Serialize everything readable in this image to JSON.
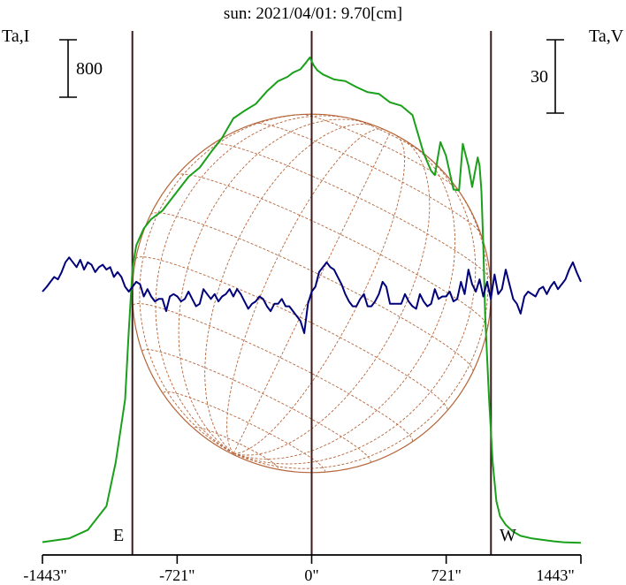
{
  "chart_data": {
    "type": "line",
    "title": "sun: 2021/04/01: 9.70[cm]",
    "title_color": "#2a2a7a",
    "ylabel_left": "Ta,I",
    "ylabel_right": "Ta,V",
    "scalebar_left": "800",
    "scalebar_right": "30",
    "marker_east": "E",
    "marker_west": "W",
    "xlim": [
      -1443,
      1443
    ],
    "xticks": [
      {
        "value": -1443,
        "label": "-1443\""
      },
      {
        "value": -721,
        "label": "-721\""
      },
      {
        "value": 0,
        "label": "0\""
      },
      {
        "value": 721,
        "label": "721\""
      },
      {
        "value": 1443,
        "label": "1443\""
      }
    ],
    "limb_lines": [
      -961,
      0,
      961
    ],
    "colors": {
      "intensity": "#1aa01a",
      "polarization": "#00007a",
      "solar_disk": "#b5653a",
      "limb_line": "#3a1a1a",
      "axes": "#000000"
    },
    "series": [
      {
        "key": "intensity",
        "color": "#1aa01a",
        "x": [
          -1443,
          -1300,
          -1200,
          -1100,
          -1050,
          -1000,
          -980,
          -960,
          -940,
          -900,
          -860,
          -800,
          -720,
          -660,
          -600,
          -540,
          -480,
          -420,
          -360,
          -300,
          -240,
          -180,
          -130,
          -100,
          -60,
          -30,
          -10,
          10,
          30,
          60,
          120,
          180,
          240,
          300,
          360,
          420,
          480,
          540,
          600,
          640,
          660,
          690,
          720,
          760,
          790,
          810,
          840,
          860,
          890,
          900,
          910,
          920,
          930,
          950,
          970,
          990,
          1010,
          1040,
          1080,
          1120,
          1180,
          1250,
          1300,
          1350,
          1400,
          1443
        ],
        "y": [
          16,
          60,
          160,
          440,
          960,
          1700,
          2520,
          3250,
          3520,
          3720,
          3830,
          3930,
          4160,
          4330,
          4440,
          4620,
          4790,
          5020,
          5110,
          5190,
          5340,
          5460,
          5510,
          5560,
          5600,
          5680,
          5740,
          5650,
          5590,
          5540,
          5480,
          5460,
          5390,
          5330,
          5310,
          5210,
          5170,
          5060,
          4610,
          4400,
          4350,
          4740,
          4580,
          4180,
          4170,
          4720,
          4460,
          4210,
          4560,
          4460,
          4160,
          3520,
          2700,
          1730,
          960,
          500,
          320,
          220,
          140,
          90,
          60,
          40,
          25,
          15,
          10,
          7
        ]
      },
      {
        "key": "polarization",
        "color": "#00007a",
        "x": [
          -1443,
          -1420,
          -1400,
          -1380,
          -1360,
          -1340,
          -1320,
          -1300,
          -1280,
          -1260,
          -1240,
          -1220,
          -1200,
          -1180,
          -1160,
          -1140,
          -1120,
          -1100,
          -1080,
          -1060,
          -1040,
          -1020,
          -1000,
          -980,
          -960,
          -940,
          -920,
          -900,
          -880,
          -860,
          -840,
          -820,
          -800,
          -780,
          -760,
          -740,
          -720,
          -700,
          -680,
          -660,
          -640,
          -620,
          -600,
          -580,
          -560,
          -540,
          -520,
          -500,
          -480,
          -460,
          -440,
          -420,
          -400,
          -380,
          -360,
          -340,
          -320,
          -300,
          -280,
          -260,
          -240,
          -220,
          -200,
          -180,
          -160,
          -140,
          -120,
          -100,
          -80,
          -60,
          -40,
          -20,
          0,
          20,
          40,
          60,
          80,
          100,
          120,
          140,
          160,
          180,
          200,
          220,
          240,
          260,
          280,
          300,
          320,
          340,
          360,
          380,
          400,
          420,
          440,
          460,
          480,
          500,
          520,
          540,
          560,
          580,
          600,
          620,
          640,
          660,
          680,
          700,
          720,
          740,
          760,
          780,
          800,
          820,
          840,
          860,
          880,
          900,
          920,
          940,
          960,
          980,
          1000,
          1020,
          1040,
          1060,
          1080,
          1100,
          1120,
          1140,
          1160,
          1180,
          1200,
          1220,
          1240,
          1260,
          1280,
          1300,
          1320,
          1340,
          1360,
          1380,
          1400,
          1420,
          1443
        ],
        "y": [
          0,
          2,
          4,
          6,
          5,
          8,
          12,
          14,
          12,
          10,
          13,
          9,
          12,
          11,
          8,
          10,
          11,
          9,
          10,
          6,
          8,
          6,
          2,
          0,
          2,
          4,
          3,
          -2,
          1,
          -2,
          -4,
          -3,
          -3,
          -8,
          -2,
          -1,
          -2,
          -4,
          -3,
          0,
          -3,
          -6,
          -5,
          1,
          -1,
          -3,
          -1,
          -4,
          -2,
          -1,
          1,
          -2,
          1,
          -1,
          -4,
          -7,
          -5,
          -4,
          -2,
          -3,
          -6,
          -8,
          -5,
          -5,
          -3,
          -6,
          -6,
          -8,
          -10,
          -12,
          -17,
          -5,
          0,
          2,
          8,
          10,
          12,
          10,
          9,
          6,
          3,
          -1,
          -4,
          -6,
          -6,
          -3,
          -1,
          -6,
          -6,
          -4,
          -1,
          4,
          2,
          -5,
          -5,
          -5,
          -5,
          -1,
          -4,
          -6,
          -7,
          -1,
          -4,
          -6,
          -5,
          1,
          -3,
          -2,
          -2,
          0,
          -4,
          -3,
          4,
          -1,
          9,
          3,
          0,
          5,
          -2,
          4,
          -3,
          7,
          -1,
          1,
          9,
          3,
          -3,
          -5,
          -9,
          -2,
          0,
          -1,
          -2,
          1,
          2,
          -1,
          2,
          4,
          1,
          3,
          5,
          9,
          12,
          8,
          4
        ]
      }
    ]
  }
}
